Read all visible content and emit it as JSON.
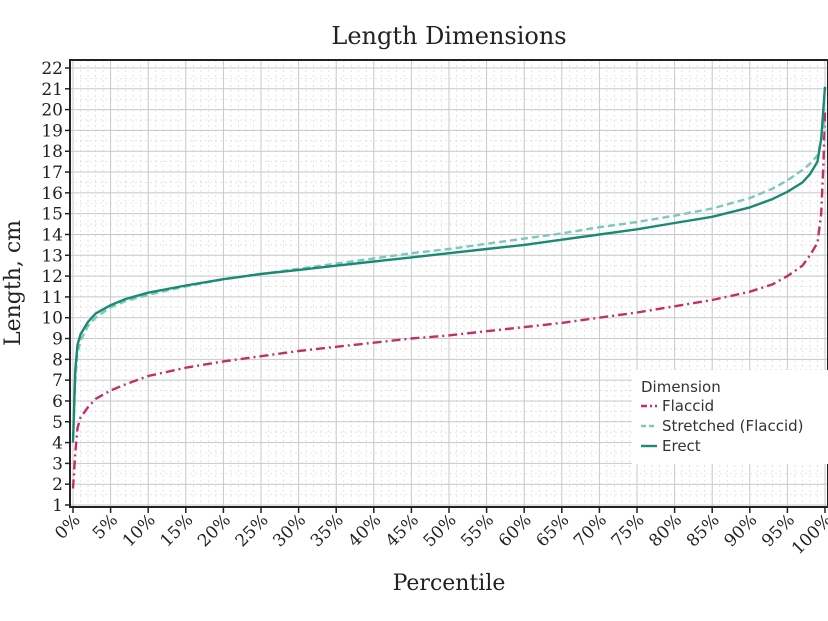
{
  "chart_data": {
    "type": "line",
    "title": "Length Dimensions",
    "xlabel": "Percentile",
    "ylabel": "Length, cm",
    "xlim": [
      0,
      100
    ],
    "ylim": [
      1,
      22
    ],
    "x_ticks": [
      "0%",
      "5%",
      "10%",
      "15%",
      "20%",
      "25%",
      "30%",
      "35%",
      "40%",
      "45%",
      "50%",
      "55%",
      "60%",
      "65%",
      "70%",
      "75%",
      "80%",
      "85%",
      "90%",
      "95%",
      "100%"
    ],
    "y_ticks": [
      1,
      2,
      3,
      4,
      5,
      6,
      7,
      8,
      9,
      10,
      11,
      12,
      13,
      14,
      15,
      16,
      17,
      18,
      19,
      20,
      21,
      22
    ],
    "grid": true,
    "legend": {
      "title": "Dimension",
      "position": "bottom-right"
    },
    "series": [
      {
        "name": "Flaccid",
        "style": "dash-dot",
        "color": "#c0306a",
        "x": [
          0,
          0.3,
          0.6,
          1,
          2,
          3,
          5,
          7,
          10,
          15,
          20,
          25,
          30,
          35,
          40,
          45,
          50,
          55,
          60,
          65,
          70,
          75,
          80,
          85,
          90,
          93,
          95,
          97,
          98,
          99,
          99.5,
          99.8,
          100
        ],
        "y": [
          1.8,
          3.5,
          4.7,
          5.2,
          5.7,
          6.1,
          6.5,
          6.8,
          7.2,
          7.6,
          7.9,
          8.15,
          8.4,
          8.6,
          8.8,
          9.0,
          9.15,
          9.35,
          9.55,
          9.75,
          10.0,
          10.25,
          10.55,
          10.85,
          11.25,
          11.6,
          12.0,
          12.5,
          13.0,
          13.6,
          15.0,
          17.5,
          19.9
        ]
      },
      {
        "name": "Stretched (Flaccid)",
        "style": "dashed",
        "color": "#7cc8bc",
        "x": [
          0,
          0.3,
          0.6,
          1,
          2,
          3,
          5,
          7,
          10,
          15,
          20,
          25,
          30,
          35,
          40,
          45,
          50,
          55,
          60,
          65,
          70,
          75,
          80,
          85,
          90,
          93,
          95,
          97,
          98,
          99,
          99.5,
          100
        ],
        "y": [
          4.2,
          7.0,
          8.3,
          8.9,
          9.6,
          10.0,
          10.5,
          10.8,
          11.1,
          11.5,
          11.85,
          12.1,
          12.35,
          12.6,
          12.85,
          13.1,
          13.3,
          13.55,
          13.8,
          14.05,
          14.35,
          14.6,
          14.9,
          15.25,
          15.75,
          16.2,
          16.6,
          17.1,
          17.4,
          17.8,
          18.5,
          19.6
        ]
      },
      {
        "name": "Erect",
        "style": "solid",
        "color": "#1a8a72",
        "x": [
          0,
          0.3,
          0.6,
          1,
          2,
          3,
          5,
          7,
          10,
          15,
          20,
          25,
          30,
          35,
          40,
          45,
          50,
          55,
          60,
          65,
          70,
          75,
          80,
          85,
          90,
          93,
          95,
          97,
          98,
          99,
          99.5,
          100
        ],
        "y": [
          4.0,
          7.5,
          8.7,
          9.2,
          9.8,
          10.2,
          10.6,
          10.9,
          11.2,
          11.55,
          11.85,
          12.1,
          12.3,
          12.5,
          12.7,
          12.9,
          13.1,
          13.3,
          13.5,
          13.75,
          14.0,
          14.25,
          14.55,
          14.85,
          15.3,
          15.7,
          16.05,
          16.5,
          16.9,
          17.5,
          18.6,
          21.1
        ]
      }
    ]
  }
}
